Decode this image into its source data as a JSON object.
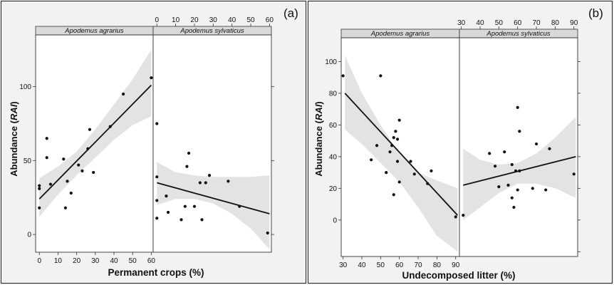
{
  "chart_data": [
    {
      "type": "scatter",
      "panel_label": "(a)",
      "ylabel_prefix": "Abundance (",
      "ylabel_italic": "RAI",
      "ylabel_suffix": ")",
      "xlabel": "Permanent crops (%)",
      "xlim": [
        -2,
        61
      ],
      "ylim": [
        -12,
        135
      ],
      "x_ticks": [
        0,
        10,
        20,
        30,
        40,
        50,
        60
      ],
      "y_ticks": [
        0,
        50,
        100
      ],
      "facets": [
        {
          "name": "Apodemus agrarius",
          "points": [
            [
              0,
              18
            ],
            [
              0,
              31
            ],
            [
              0,
              33
            ],
            [
              4,
              65
            ],
            [
              4,
              52
            ],
            [
              6,
              34
            ],
            [
              13,
              51
            ],
            [
              14,
              18
            ],
            [
              15,
              36
            ],
            [
              17,
              28
            ],
            [
              21,
              47
            ],
            [
              23,
              43
            ],
            [
              26,
              58
            ],
            [
              27,
              71
            ],
            [
              29,
              42
            ],
            [
              38,
              73
            ],
            [
              45,
              95
            ],
            [
              60,
              106
            ]
          ],
          "fit": [
            [
              0,
              24
            ],
            [
              60,
              101
            ]
          ],
          "ci_upper": [
            [
              0,
              38
            ],
            [
              10,
              46
            ],
            [
              20,
              56
            ],
            [
              30,
              71
            ],
            [
              40,
              88
            ],
            [
              50,
              105
            ],
            [
              60,
              125
            ]
          ],
          "ci_lower": [
            [
              0,
              12
            ],
            [
              10,
              27
            ],
            [
              20,
              40
            ],
            [
              30,
              52
            ],
            [
              40,
              64
            ],
            [
              50,
              74
            ],
            [
              60,
              80
            ]
          ]
        },
        {
          "name": "Apodemus sylvaticus",
          "points": [
            [
              0,
              75
            ],
            [
              0,
              39
            ],
            [
              0,
              23
            ],
            [
              0,
              11
            ],
            [
              5,
              26
            ],
            [
              6,
              15
            ],
            [
              13,
              10
            ],
            [
              15,
              19
            ],
            [
              16,
              46
            ],
            [
              17,
              55
            ],
            [
              20,
              19
            ],
            [
              23,
              35
            ],
            [
              24,
              10
            ],
            [
              26,
              35
            ],
            [
              28,
              40
            ],
            [
              38,
              36
            ],
            [
              44,
              19
            ],
            [
              59,
              1
            ]
          ],
          "fit": [
            [
              0,
              35
            ],
            [
              60,
              14
            ]
          ],
          "ci_upper": [
            [
              0,
              49
            ],
            [
              10,
              42
            ],
            [
              20,
              40
            ],
            [
              30,
              39
            ],
            [
              40,
              39
            ],
            [
              50,
              39
            ],
            [
              60,
              40
            ]
          ],
          "ci_lower": [
            [
              0,
              20
            ],
            [
              10,
              24
            ],
            [
              20,
              24
            ],
            [
              30,
              21
            ],
            [
              40,
              14
            ],
            [
              50,
              4
            ],
            [
              60,
              -10
            ]
          ]
        }
      ]
    },
    {
      "type": "scatter",
      "panel_label": "(b)",
      "ylabel_prefix": "Abundance (",
      "ylabel_italic": "RAI",
      "ylabel_suffix": ")",
      "xlabel": "Undecomposed litter (%)",
      "xlim": [
        29,
        92
      ],
      "ylim": [
        -23,
        115
      ],
      "x_ticks": [
        30,
        40,
        50,
        60,
        70,
        80,
        90
      ],
      "y_ticks": [
        0,
        20,
        40,
        60,
        80,
        100
      ],
      "facets": [
        {
          "name": "Apodemus agrarius",
          "points": [
            [
              30,
              91
            ],
            [
              45,
              38
            ],
            [
              48,
              47
            ],
            [
              50,
              91
            ],
            [
              53,
              30
            ],
            [
              55,
              43
            ],
            [
              56,
              47
            ],
            [
              57,
              16
            ],
            [
              57,
              52
            ],
            [
              58,
              56
            ],
            [
              59,
              37
            ],
            [
              59,
              51
            ],
            [
              60,
              24
            ],
            [
              60,
              63
            ],
            [
              66,
              37
            ],
            [
              68,
              29
            ],
            [
              75,
              23
            ],
            [
              77,
              31
            ],
            [
              90,
              2
            ]
          ],
          "fit": [
            [
              31,
              80
            ],
            [
              91,
              3
            ]
          ],
          "ci_upper": [
            [
              31,
              104
            ],
            [
              40,
              80
            ],
            [
              50,
              60
            ],
            [
              60,
              42
            ],
            [
              70,
              30
            ],
            [
              80,
              25
            ],
            [
              91,
              20
            ]
          ],
          "ci_lower": [
            [
              31,
              57
            ],
            [
              40,
              48
            ],
            [
              50,
              36
            ],
            [
              60,
              24
            ],
            [
              70,
              8
            ],
            [
              80,
              -10
            ],
            [
              91,
              -20
            ]
          ]
        },
        {
          "name": "Apodemus sylvaticus",
          "points": [
            [
              31,
              3
            ],
            [
              45,
              42
            ],
            [
              48,
              34
            ],
            [
              50,
              21
            ],
            [
              53,
              43
            ],
            [
              55,
              22
            ],
            [
              57,
              35
            ],
            [
              57,
              14
            ],
            [
              58,
              8
            ],
            [
              59,
              31
            ],
            [
              60,
              19
            ],
            [
              60,
              71
            ],
            [
              61,
              31
            ],
            [
              61,
              56
            ],
            [
              68,
              20
            ],
            [
              70,
              48
            ],
            [
              75,
              19
            ],
            [
              77,
              45
            ],
            [
              90,
              29
            ]
          ],
          "fit": [
            [
              31,
              22
            ],
            [
              91,
              40
            ]
          ],
          "ci_upper": [
            [
              31,
              45
            ],
            [
              40,
              38
            ],
            [
              50,
              35
            ],
            [
              60,
              36
            ],
            [
              70,
              42
            ],
            [
              80,
              52
            ],
            [
              91,
              65
            ]
          ],
          "ci_lower": [
            [
              31,
              0
            ],
            [
              40,
              8
            ],
            [
              50,
              17
            ],
            [
              60,
              23
            ],
            [
              70,
              23
            ],
            [
              80,
              20
            ],
            [
              91,
              14
            ]
          ]
        }
      ]
    }
  ]
}
